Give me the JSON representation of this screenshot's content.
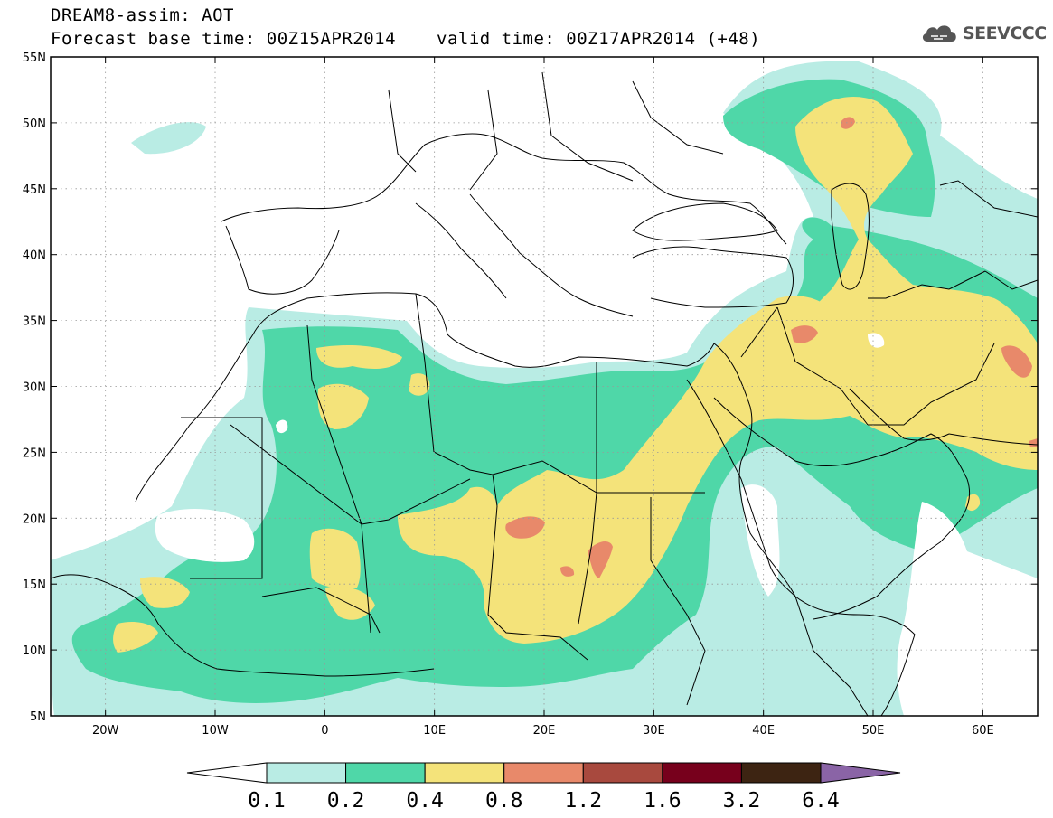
{
  "header": {
    "title_line1": "DREAM8-assim: AOT",
    "title_line2": "Forecast base time: 00Z15APR2014",
    "valid_time": "valid time: 00Z17APR2014 (+48)"
  },
  "logo": {
    "text": "SEEVCCC",
    "icon": "cloud-icon"
  },
  "map": {
    "lat_ticks": [
      "55N",
      "50N",
      "45N",
      "40N",
      "35N",
      "30N",
      "25N",
      "20N",
      "15N",
      "10N",
      "5N"
    ],
    "lon_ticks": [
      "20W",
      "10W",
      "0",
      "10E",
      "20E",
      "30E",
      "40E",
      "50E",
      "60E"
    ],
    "extent": {
      "lon_min": -25,
      "lon_max": 65,
      "lat_min": 5,
      "lat_max": 55
    }
  },
  "colorbar": {
    "labels": [
      "0.1",
      "0.2",
      "0.4",
      "0.8",
      "1.2",
      "1.6",
      "3.2",
      "6.4"
    ],
    "colors": [
      "#ffffff",
      "#b9ece4",
      "#4fd7a8",
      "#f4e37a",
      "#e8896a",
      "#a8493e",
      "#77001c",
      "#3d2412",
      "#8a64a6"
    ]
  },
  "palette": {
    "c1": "#b9ece4",
    "c2": "#4fd7a8",
    "c3": "#f4e37a",
    "c4": "#e8896a"
  }
}
